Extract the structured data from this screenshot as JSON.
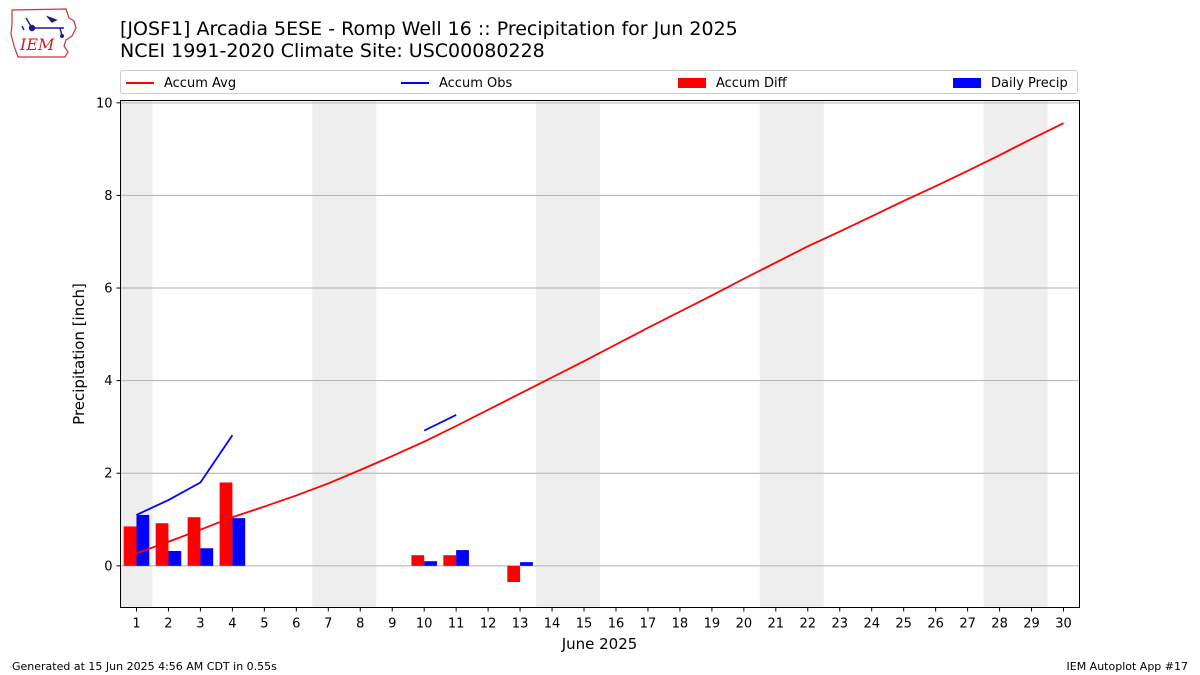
{
  "header": {
    "title_line1": "[JOSF1] Arcadia 5ESE - Romp Well 16 :: Precipitation for Jun 2025",
    "title_line2": "NCEI 1991-2020 Climate Site: USC00080228"
  },
  "logo": {
    "text": "IEM"
  },
  "footer": {
    "left": "Generated at 15 Jun 2025 4:56 AM CDT in 0.55s",
    "right": "IEM Autoplot App #17"
  },
  "legend": [
    {
      "label": "Accum Avg",
      "kind": "line",
      "color": "#ff0000"
    },
    {
      "label": "Accum Obs",
      "kind": "line",
      "color": "#0000ff"
    },
    {
      "label": "Accum Diff",
      "kind": "patch",
      "color": "#ff0000"
    },
    {
      "label": "Daily Precip",
      "kind": "patch",
      "color": "#0000ff"
    }
  ],
  "chart_data": {
    "type": "bar",
    "xlabel": "June 2025",
    "ylabel": "Precipitation [inch]",
    "xlim": [
      0.5,
      30.5
    ],
    "ylim": [
      -0.9,
      10.05
    ],
    "yticks": [
      0,
      2,
      4,
      6,
      8,
      10
    ],
    "grid": "horizontal",
    "legend_position": "top",
    "days": [
      1,
      2,
      3,
      4,
      5,
      6,
      7,
      8,
      9,
      10,
      11,
      12,
      13,
      14,
      15,
      16,
      17,
      18,
      19,
      20,
      21,
      22,
      23,
      24,
      25,
      26,
      27,
      28,
      29,
      30
    ],
    "weekend_spans": [
      [
        0.5,
        1.5
      ],
      [
        6.5,
        8.5
      ],
      [
        13.5,
        15.5
      ],
      [
        20.5,
        22.5
      ],
      [
        27.5,
        29.5
      ]
    ],
    "accum_avg": [
      0.27,
      0.52,
      0.78,
      1.05,
      1.28,
      1.52,
      1.78,
      2.07,
      2.37,
      2.68,
      3.02,
      3.37,
      3.72,
      4.07,
      4.42,
      4.78,
      5.14,
      5.49,
      5.84,
      6.2,
      6.55,
      6.9,
      7.22,
      7.55,
      7.88,
      8.2,
      8.53,
      8.87,
      9.22,
      9.56
    ],
    "accum_obs_segments": [
      [
        [
          1,
          1.1
        ],
        [
          2,
          1.42
        ],
        [
          3,
          1.8
        ],
        [
          4,
          2.82
        ]
      ],
      [
        [
          10,
          2.92
        ],
        [
          11,
          3.26
        ]
      ]
    ],
    "accum_diff": [
      {
        "day": 1,
        "value": 0.85
      },
      {
        "day": 2,
        "value": 0.92
      },
      {
        "day": 3,
        "value": 1.05
      },
      {
        "day": 4,
        "value": 1.8
      },
      {
        "day": 10,
        "value": 0.23
      },
      {
        "day": 11,
        "value": 0.23
      },
      {
        "day": 13,
        "value": -0.35
      }
    ],
    "daily_precip": [
      {
        "day": 1,
        "value": 1.1
      },
      {
        "day": 2,
        "value": 0.32
      },
      {
        "day": 3,
        "value": 0.38
      },
      {
        "day": 4,
        "value": 1.03
      },
      {
        "day": 10,
        "value": 0.1
      },
      {
        "day": 11,
        "value": 0.34
      },
      {
        "day": 13,
        "value": 0.08
      }
    ],
    "colors": {
      "accum_avg": "#ff0000",
      "accum_obs": "#0000ff",
      "accum_diff": "#ff0000",
      "daily_precip": "#0000ff",
      "weekend_shade": "#eeeeee",
      "grid": "#b0b0b0"
    }
  }
}
